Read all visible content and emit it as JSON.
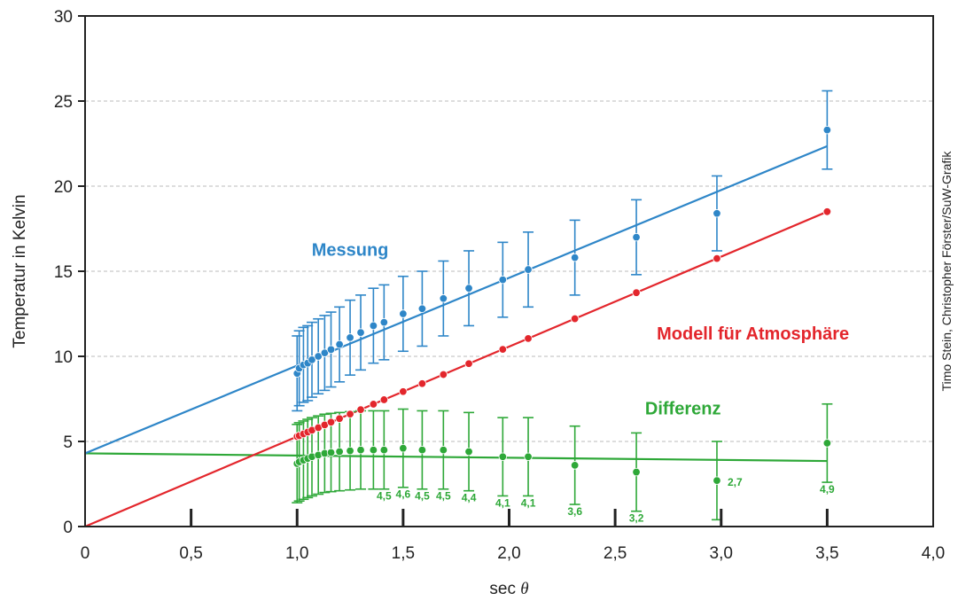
{
  "chart_data": {
    "type": "scatter",
    "xlabel_prefix": "sec ",
    "xlabel_symbol": "θ",
    "ylabel": "Temperatur in Kelvin",
    "xlim": [
      0,
      4.0
    ],
    "ylim": [
      0,
      30
    ],
    "x_ticks": [
      0,
      0.5,
      1.0,
      1.5,
      2.0,
      2.5,
      3.0,
      3.5,
      4.0
    ],
    "x_tick_labels": [
      "0",
      "0,5",
      "1,0",
      "1,5",
      "2,0",
      "2,5",
      "3,0",
      "3,5",
      "4,0"
    ],
    "y_ticks": [
      0,
      5,
      10,
      15,
      20,
      25,
      30
    ],
    "y_tick_labels": [
      "0",
      "5",
      "10",
      "15",
      "20",
      "25",
      "30"
    ],
    "grid": "horizontal dashed",
    "credit": "Timo Stein, Christopher Förster/SuW-Grafik",
    "x": [
      1.0,
      1.01,
      1.03,
      1.05,
      1.07,
      1.1,
      1.13,
      1.16,
      1.2,
      1.25,
      1.3,
      1.36,
      1.41,
      1.5,
      1.59,
      1.69,
      1.81,
      1.97,
      2.09,
      2.31,
      2.6,
      2.98,
      3.5
    ],
    "series": [
      {
        "name": "Messung",
        "color": "#2e86c8",
        "fit_line": {
          "x": [
            0,
            3.5
          ],
          "y": [
            4.3,
            22.35
          ]
        },
        "values": [
          9.0,
          9.3,
          9.5,
          9.6,
          9.8,
          10.0,
          10.2,
          10.4,
          10.7,
          11.1,
          11.4,
          11.8,
          12.0,
          12.5,
          12.8,
          13.4,
          14.0,
          14.5,
          15.1,
          15.8,
          17.0,
          18.4,
          23.3
        ],
        "errors": [
          2.2,
          2.2,
          2.2,
          2.2,
          2.2,
          2.2,
          2.2,
          2.2,
          2.2,
          2.2,
          2.2,
          2.2,
          2.2,
          2.2,
          2.2,
          2.2,
          2.2,
          2.2,
          2.2,
          2.2,
          2.2,
          2.2,
          2.3
        ]
      },
      {
        "name": "Modell für Atmosphäre",
        "color": "#e3262c",
        "fit_line": {
          "x": [
            0,
            3.5
          ],
          "y": [
            0,
            18.5
          ]
        },
        "values": [
          5.29,
          5.34,
          5.44,
          5.55,
          5.66,
          5.81,
          5.97,
          6.13,
          6.34,
          6.61,
          6.87,
          7.19,
          7.45,
          7.93,
          8.4,
          8.93,
          9.57,
          10.41,
          11.05,
          12.21,
          13.74,
          15.75,
          18.5
        ]
      },
      {
        "name": "Differenz",
        "color": "#2ea838",
        "fit_line": {
          "x": [
            0,
            3.5
          ],
          "y": [
            4.3,
            3.85
          ]
        },
        "values": [
          3.7,
          3.8,
          3.9,
          4.0,
          4.1,
          4.2,
          4.3,
          4.35,
          4.4,
          4.45,
          4.5,
          4.5,
          4.5,
          4.6,
          4.5,
          4.5,
          4.4,
          4.1,
          4.1,
          3.6,
          3.2,
          2.7,
          4.9
        ],
        "errors": [
          2.3,
          2.3,
          2.3,
          2.3,
          2.3,
          2.3,
          2.3,
          2.3,
          2.3,
          2.3,
          2.3,
          2.3,
          2.3,
          2.3,
          2.3,
          2.3,
          2.3,
          2.3,
          2.3,
          2.3,
          2.3,
          2.3,
          2.3
        ],
        "annotations": [
          {
            "x": 1.41,
            "y": 4.5,
            "text": "4,5",
            "pos": "below"
          },
          {
            "x": 1.5,
            "y": 4.6,
            "text": "4,6",
            "pos": "below"
          },
          {
            "x": 1.59,
            "y": 4.5,
            "text": "4,5",
            "pos": "below"
          },
          {
            "x": 1.69,
            "y": 4.5,
            "text": "4,5",
            "pos": "below"
          },
          {
            "x": 1.81,
            "y": 4.4,
            "text": "4,4",
            "pos": "below"
          },
          {
            "x": 1.97,
            "y": 4.1,
            "text": "4,1",
            "pos": "below"
          },
          {
            "x": 2.09,
            "y": 4.1,
            "text": "4,1",
            "pos": "below"
          },
          {
            "x": 2.31,
            "y": 3.6,
            "text": "3,6",
            "pos": "below"
          },
          {
            "x": 2.6,
            "y": 3.2,
            "text": "3,2",
            "pos": "below"
          },
          {
            "x": 2.98,
            "y": 2.7,
            "text": "2,7",
            "pos": "right"
          },
          {
            "x": 3.5,
            "y": 4.9,
            "text": "4,9",
            "pos": "below"
          }
        ]
      }
    ],
    "series_labels": [
      {
        "series": 0,
        "text": "Messung",
        "x": 1.25,
        "y": 15.9
      },
      {
        "series": 1,
        "text": "Modell für Atmosphäre",
        "x": 3.15,
        "y": 11.0
      },
      {
        "series": 2,
        "text": "Differenz",
        "x": 2.82,
        "y": 6.6
      }
    ]
  }
}
